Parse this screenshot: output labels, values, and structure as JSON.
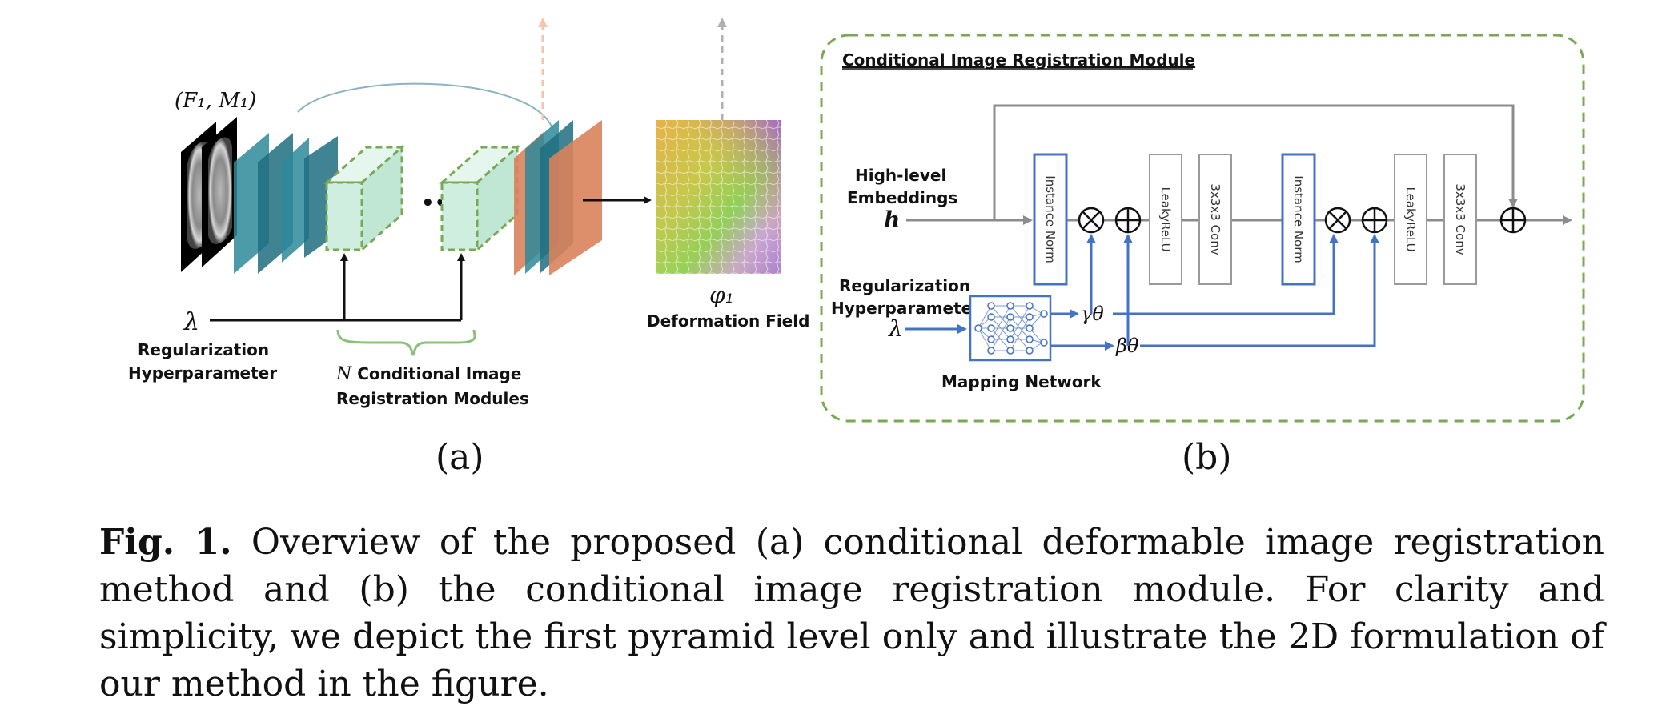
{
  "panel_a": {
    "input_label": "(F₁, M₁)",
    "lambda_symbol": "λ",
    "reg_line1": "Regularization",
    "reg_line2": "Hyperparameter",
    "modules_n": "N",
    "modules_line1": " Conditional Image",
    "modules_line2": "Registration Modules",
    "output_symbol": "φ₁",
    "output_label": "Deformation Field",
    "ellipsis": "•••",
    "sublabel": "(a)"
  },
  "panel_b": {
    "title": "Conditional Image Registration Module",
    "high_line1": "High-level",
    "high_line2": "Embeddings",
    "h_symbol": "h",
    "reg_line1": "Regularization",
    "reg_line2": "Hyperparameter",
    "lambda_symbol": "λ",
    "mapping_label": "Mapping Network",
    "gamma": "γθ",
    "beta": "βθ",
    "blocks": [
      "Instance Norm",
      "LeakyReLU",
      "3x3x3 Conv",
      "Instance Norm",
      "LeakyReLU",
      "3x3x3 Conv"
    ],
    "sublabel": "(b)"
  },
  "caption": {
    "lead": "Fig. 1.",
    "text": " Overview of the proposed (a) conditional deformable image registration method and (b) the conditional image registration module. For clarity and simplicity, we depict the first pyramid level only and illustrate the 2D formulation of our method in the figure."
  },
  "colors": {
    "teal": "#2e8a9a",
    "teal_dark": "#1e6f80",
    "orange": "#d9825b",
    "module_fill": "#cfeee0",
    "dash_green": "#7aa856",
    "brace_green": "#8bc07a",
    "blue": "#4472c4",
    "gray": "#8c8c8c"
  },
  "icons": [
    "brain-mri-icon",
    "multiply-icon",
    "add-icon",
    "neural-network-icon"
  ]
}
